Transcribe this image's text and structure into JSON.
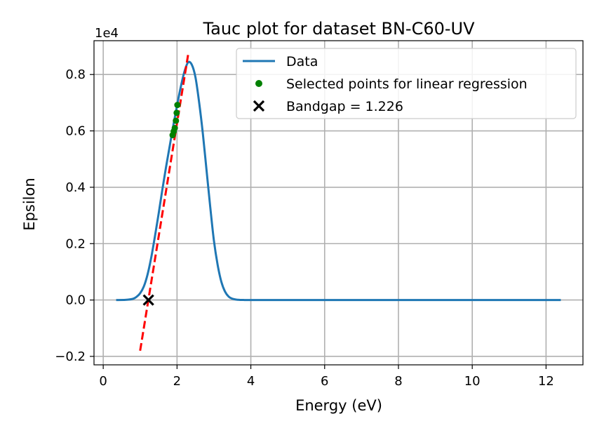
{
  "chart_data": {
    "type": "line",
    "title": "Tauc plot for dataset BN-C60-UV",
    "xlabel": "Energy (eV)",
    "ylabel": "Epsilon",
    "y_offset_label": "1e4",
    "y_scale": 10000,
    "xlim": [
      -0.25,
      13.0
    ],
    "ylim": [
      -2300,
      9200
    ],
    "grid": true,
    "legend_position": "top-right",
    "x_ticks": [
      0,
      2,
      4,
      6,
      8,
      10,
      12
    ],
    "x_tick_labels": [
      "0",
      "2",
      "4",
      "6",
      "8",
      "10",
      "12"
    ],
    "y_ticks": [
      -2000,
      0,
      2000,
      4000,
      6000,
      8000
    ],
    "y_tick_labels": [
      "−0.2",
      "0.0",
      "0.2",
      "0.4",
      "0.6",
      "0.8"
    ],
    "series": [
      {
        "name": "Data",
        "kind": "line",
        "color": "#1f77b4",
        "x": [
          0.35,
          0.6,
          0.8,
          0.9,
          1.0,
          1.1,
          1.2,
          1.3,
          1.4,
          1.5,
          1.6,
          1.7,
          1.8,
          1.9,
          2.0,
          2.1,
          2.2,
          2.3,
          2.4,
          2.5,
          2.6,
          2.7,
          2.8,
          2.9,
          3.0,
          3.1,
          3.2,
          3.3,
          3.4,
          3.5,
          3.6,
          3.7,
          3.8,
          4.0,
          5.0,
          6.0,
          8.0,
          10.0,
          12.4
        ],
        "y": [
          0,
          5,
          40,
          110,
          240,
          480,
          900,
          1500,
          2250,
          3050,
          3900,
          4700,
          5450,
          6200,
          6900,
          7550,
          8100,
          8430,
          8350,
          7900,
          7000,
          5900,
          4600,
          3300,
          2100,
          1250,
          650,
          300,
          120,
          45,
          15,
          4,
          1,
          0,
          0,
          0,
          0,
          0,
          0
        ]
      },
      {
        "name": "Selected points for linear regression",
        "kind": "scatter",
        "color": "#008000",
        "x": [
          1.88,
          1.91,
          1.94,
          1.97,
          1.99,
          2.01
        ],
        "y": [
          5850,
          5980,
          6100,
          6360,
          6640,
          6920
        ]
      },
      {
        "name": "",
        "kind": "fit-line",
        "color": "#ff0000",
        "x": [
          1.0,
          2.3
        ],
        "y": [
          -1800,
          8700
        ]
      },
      {
        "name": "Bandgap = 1.226",
        "kind": "marker",
        "color": "#000000",
        "x": [
          1.226
        ],
        "y": [
          0
        ]
      }
    ],
    "legend": [
      {
        "label": "Data",
        "symbol": "line",
        "color": "#1f77b4"
      },
      {
        "label": "Selected points for linear regression",
        "symbol": "dot",
        "color": "#008000"
      },
      {
        "label": "Bandgap = 1.226",
        "symbol": "x",
        "color": "#000000"
      }
    ]
  }
}
